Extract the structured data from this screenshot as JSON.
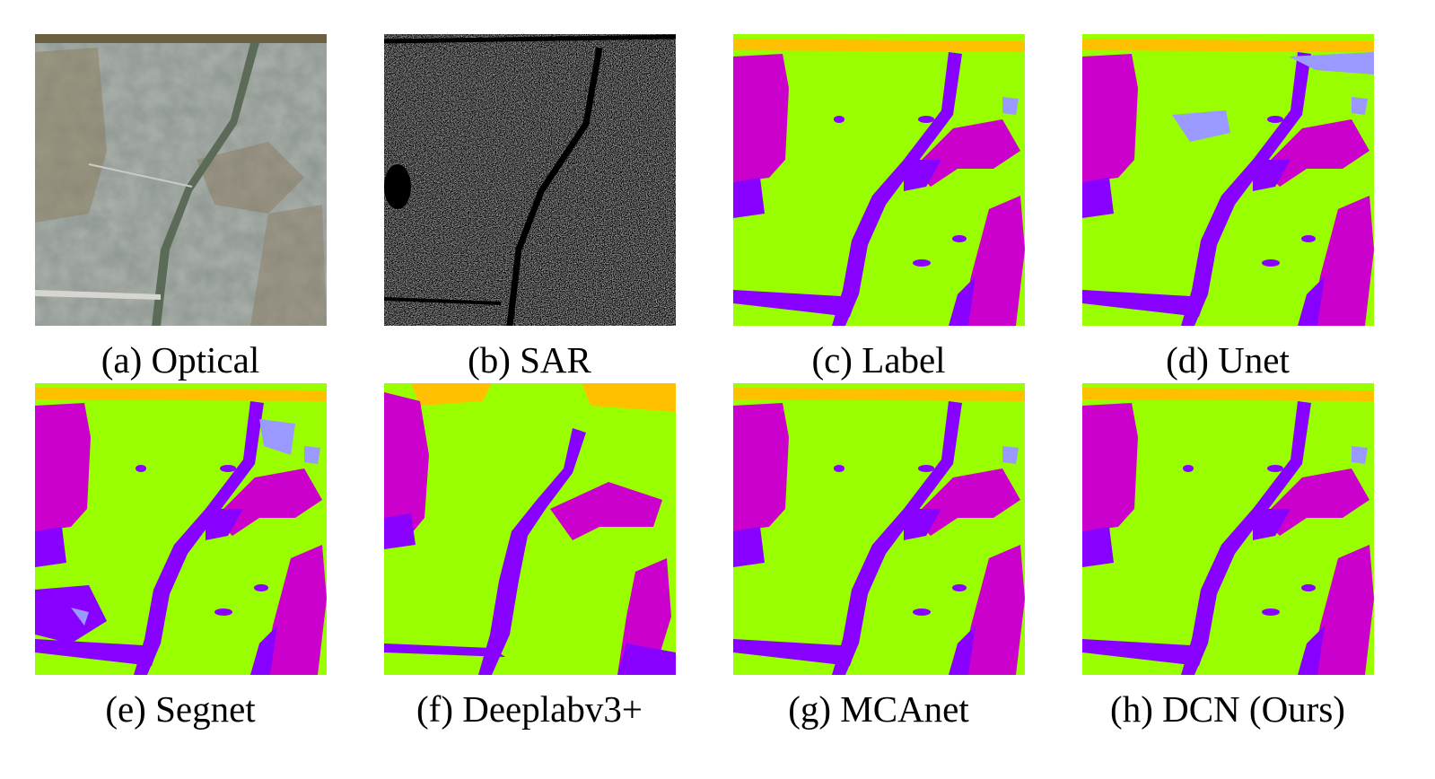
{
  "figure": {
    "panels": [
      {
        "id": "a",
        "caption": "(a) Optical"
      },
      {
        "id": "b",
        "caption": "(b) SAR"
      },
      {
        "id": "c",
        "caption": "(c) Label"
      },
      {
        "id": "d",
        "caption": "(d) Unet"
      },
      {
        "id": "e",
        "caption": "(e) Segnet"
      },
      {
        "id": "f",
        "caption": "(f) Deeplabv3+"
      },
      {
        "id": "g",
        "caption": "(g) MCAnet"
      },
      {
        "id": "h",
        "caption": "(h) DCN (Ours)"
      }
    ],
    "colors": {
      "farmland": "#99ff00",
      "road": "#8800ff",
      "town": "#cc00cc",
      "water": "#ffc000",
      "other": "#9999ff"
    }
  }
}
